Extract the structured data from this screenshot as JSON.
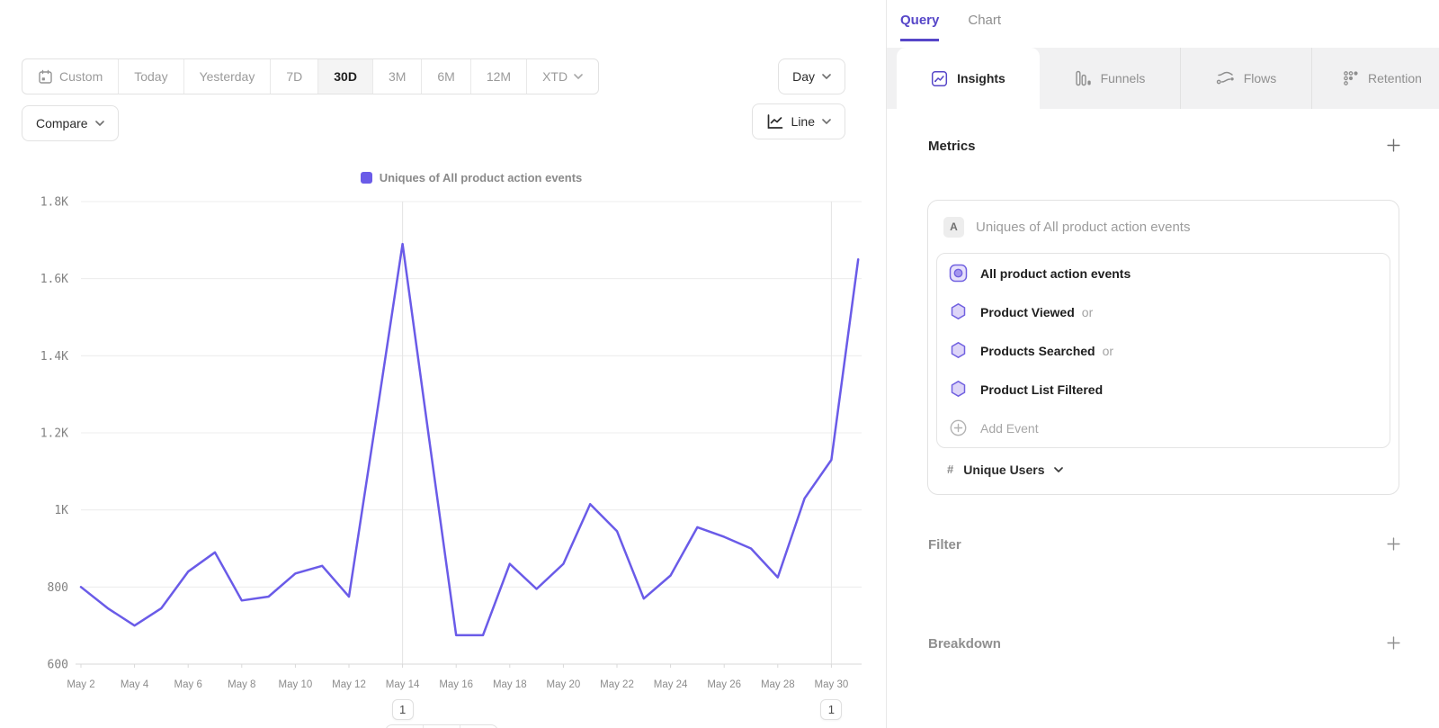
{
  "toolbar": {
    "date_ranges": [
      "Custom",
      "Today",
      "Yesterday",
      "7D",
      "30D",
      "3M",
      "6M",
      "12M",
      "XTD"
    ],
    "active_range": "30D",
    "granularity": "Day",
    "compare_label": "Compare",
    "chart_type_label": "Line"
  },
  "legend": {
    "label": "Uniques of All product action events"
  },
  "chart_data": {
    "type": "line",
    "title": "",
    "x": [
      "May 2",
      "May 3",
      "May 4",
      "May 5",
      "May 6",
      "May 7",
      "May 8",
      "May 9",
      "May 10",
      "May 11",
      "May 12",
      "May 13",
      "May 14",
      "May 15",
      "May 16",
      "May 17",
      "May 18",
      "May 19",
      "May 20",
      "May 21",
      "May 22",
      "May 23",
      "May 24",
      "May 25",
      "May 26",
      "May 27",
      "May 28",
      "May 29",
      "May 30",
      "May 31"
    ],
    "x_tick_every": 2,
    "series": [
      {
        "name": "Uniques of All product action events",
        "color": "#6A5BE8",
        "values": [
          800,
          745,
          700,
          745,
          840,
          890,
          765,
          775,
          835,
          855,
          775,
          1230,
          1690,
          1180,
          675,
          675,
          860,
          795,
          860,
          1015,
          945,
          770,
          830,
          955,
          930,
          900,
          825,
          1030,
          1130,
          1650
        ]
      }
    ],
    "ylim": [
      600,
      1800
    ],
    "yticks": [
      {
        "value": 600,
        "label": "600"
      },
      {
        "value": 800,
        "label": "800"
      },
      {
        "value": 1000,
        "label": "1K"
      },
      {
        "value": 1200,
        "label": "1.2K"
      },
      {
        "value": 1400,
        "label": "1.4K"
      },
      {
        "value": 1600,
        "label": "1.6K"
      },
      {
        "value": 1800,
        "label": "1.8K"
      }
    ],
    "grid": "horizontal",
    "legend_position": "top-center"
  },
  "annotations": [
    {
      "day": "May 14",
      "day_index": 12,
      "count": "1"
    },
    {
      "day": "May 30",
      "day_index": 28,
      "count": "1"
    }
  ],
  "panel": {
    "top_tabs": [
      {
        "label": "Query",
        "active": true
      },
      {
        "label": "Chart",
        "active": false
      }
    ],
    "report_tabs": [
      {
        "label": "Insights",
        "icon": "insights-icon",
        "active": true
      },
      {
        "label": "Funnels",
        "icon": "funnels-icon",
        "active": false
      },
      {
        "label": "Flows",
        "icon": "flows-icon",
        "active": false
      },
      {
        "label": "Retention",
        "icon": "retention-icon",
        "active": false
      }
    ],
    "metrics": {
      "title": "Metrics",
      "series_badge": "A",
      "series_title": "Uniques of All product action events",
      "events": [
        {
          "label": "All product action events",
          "suffix": "",
          "icon": "all-events-icon"
        },
        {
          "label": "Product Viewed",
          "suffix": "or",
          "icon": "event-hexagon-icon"
        },
        {
          "label": "Products Searched",
          "suffix": "or",
          "icon": "event-hexagon-icon"
        },
        {
          "label": "Product List Filtered",
          "suffix": "",
          "icon": "event-hexagon-icon"
        }
      ],
      "add_event_label": "Add Event",
      "aggregation": {
        "prefix": "#",
        "label": "Unique Users"
      }
    },
    "filter": {
      "title": "Filter"
    },
    "breakdown": {
      "title": "Breakdown"
    }
  },
  "colors": {
    "accent": "#5646C8",
    "line": "#6A5BE8"
  }
}
